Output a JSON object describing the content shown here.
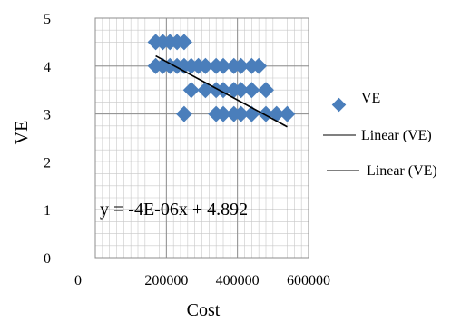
{
  "chart_data": {
    "type": "scatter",
    "title": "",
    "xlabel": "Cost",
    "ylabel": "VE",
    "xlim": [
      0,
      600000
    ],
    "ylim": [
      0,
      5
    ],
    "xticks": [
      "0",
      "200000",
      "400000",
      "600000"
    ],
    "yticks": [
      "0",
      "1",
      "2",
      "3",
      "4",
      "5"
    ],
    "grid": true,
    "legend_position": "right",
    "legend": [
      "VE",
      "Linear (VE)",
      "Linear (VE)"
    ],
    "series": [
      {
        "name": "VE",
        "color": "#4a7ebb",
        "marker": "diamond",
        "points": [
          {
            "x": 170000,
            "y": 4.5
          },
          {
            "x": 190000,
            "y": 4.5
          },
          {
            "x": 210000,
            "y": 4.5
          },
          {
            "x": 230000,
            "y": 4.5
          },
          {
            "x": 250000,
            "y": 4.5
          },
          {
            "x": 170000,
            "y": 4.0
          },
          {
            "x": 190000,
            "y": 4.0
          },
          {
            "x": 210000,
            "y": 4.0
          },
          {
            "x": 230000,
            "y": 4.0
          },
          {
            "x": 250000,
            "y": 4.0
          },
          {
            "x": 270000,
            "y": 4.0
          },
          {
            "x": 290000,
            "y": 4.0
          },
          {
            "x": 310000,
            "y": 4.0
          },
          {
            "x": 340000,
            "y": 4.0
          },
          {
            "x": 360000,
            "y": 4.0
          },
          {
            "x": 390000,
            "y": 4.0
          },
          {
            "x": 410000,
            "y": 4.0
          },
          {
            "x": 440000,
            "y": 4.0
          },
          {
            "x": 460000,
            "y": 4.0
          },
          {
            "x": 270000,
            "y": 3.5
          },
          {
            "x": 310000,
            "y": 3.5
          },
          {
            "x": 340000,
            "y": 3.5
          },
          {
            "x": 360000,
            "y": 3.5
          },
          {
            "x": 390000,
            "y": 3.5
          },
          {
            "x": 410000,
            "y": 3.5
          },
          {
            "x": 440000,
            "y": 3.5
          },
          {
            "x": 480000,
            "y": 3.5
          },
          {
            "x": 250000,
            "y": 3.0
          },
          {
            "x": 340000,
            "y": 3.0
          },
          {
            "x": 360000,
            "y": 3.0
          },
          {
            "x": 390000,
            "y": 3.0
          },
          {
            "x": 410000,
            "y": 3.0
          },
          {
            "x": 440000,
            "y": 3.0
          },
          {
            "x": 480000,
            "y": 3.0
          },
          {
            "x": 510000,
            "y": 3.0
          },
          {
            "x": 540000,
            "y": 3.0
          }
        ]
      }
    ],
    "trendline": {
      "name": "Linear (VE)",
      "color": "#000000",
      "slope": -4e-06,
      "intercept": 4.892,
      "x_range": [
        170000,
        540000
      ],
      "equation": "y = -4E-06x + 4.892"
    }
  }
}
